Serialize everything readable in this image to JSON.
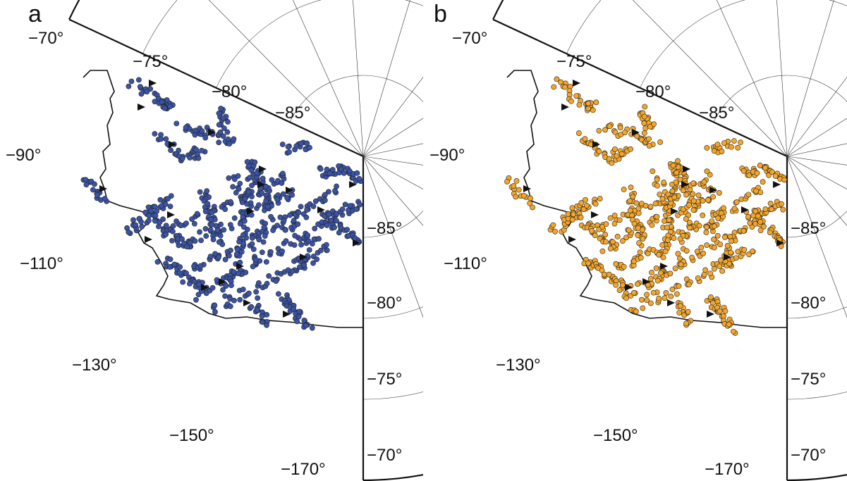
{
  "panels": [
    {
      "letter": "a",
      "marker_color": "#3a53a4",
      "labels": {
        "lat_70_top": "−70°",
        "lat_75_top": "−75°",
        "lat_80_top": "−80°",
        "lat_85_top": "−85°",
        "lon_90": "−90°",
        "lon_110": "−110°",
        "lon_130": "−130°",
        "lon_150": "−150°",
        "lon_170": "−170°",
        "lat_85_right": "−85°",
        "lat_80_right": "−80°",
        "lat_75_right": "−75°",
        "lat_70_right": "−70°"
      }
    },
    {
      "letter": "b",
      "marker_color": "#f4a62a",
      "labels": {
        "lat_70_top": "−70°",
        "lat_75_top": "−75°",
        "lat_80_top": "−80°",
        "lat_85_top": "−85°",
        "lon_90": "−90°",
        "lon_110": "−110°",
        "lon_130": "−130°",
        "lon_150": "−150°",
        "lon_170": "−170°",
        "lat_85_right": "−85°",
        "lat_80_right": "−80°",
        "lat_75_right": "−75°",
        "lat_70_right": "−70°"
      }
    }
  ]
}
